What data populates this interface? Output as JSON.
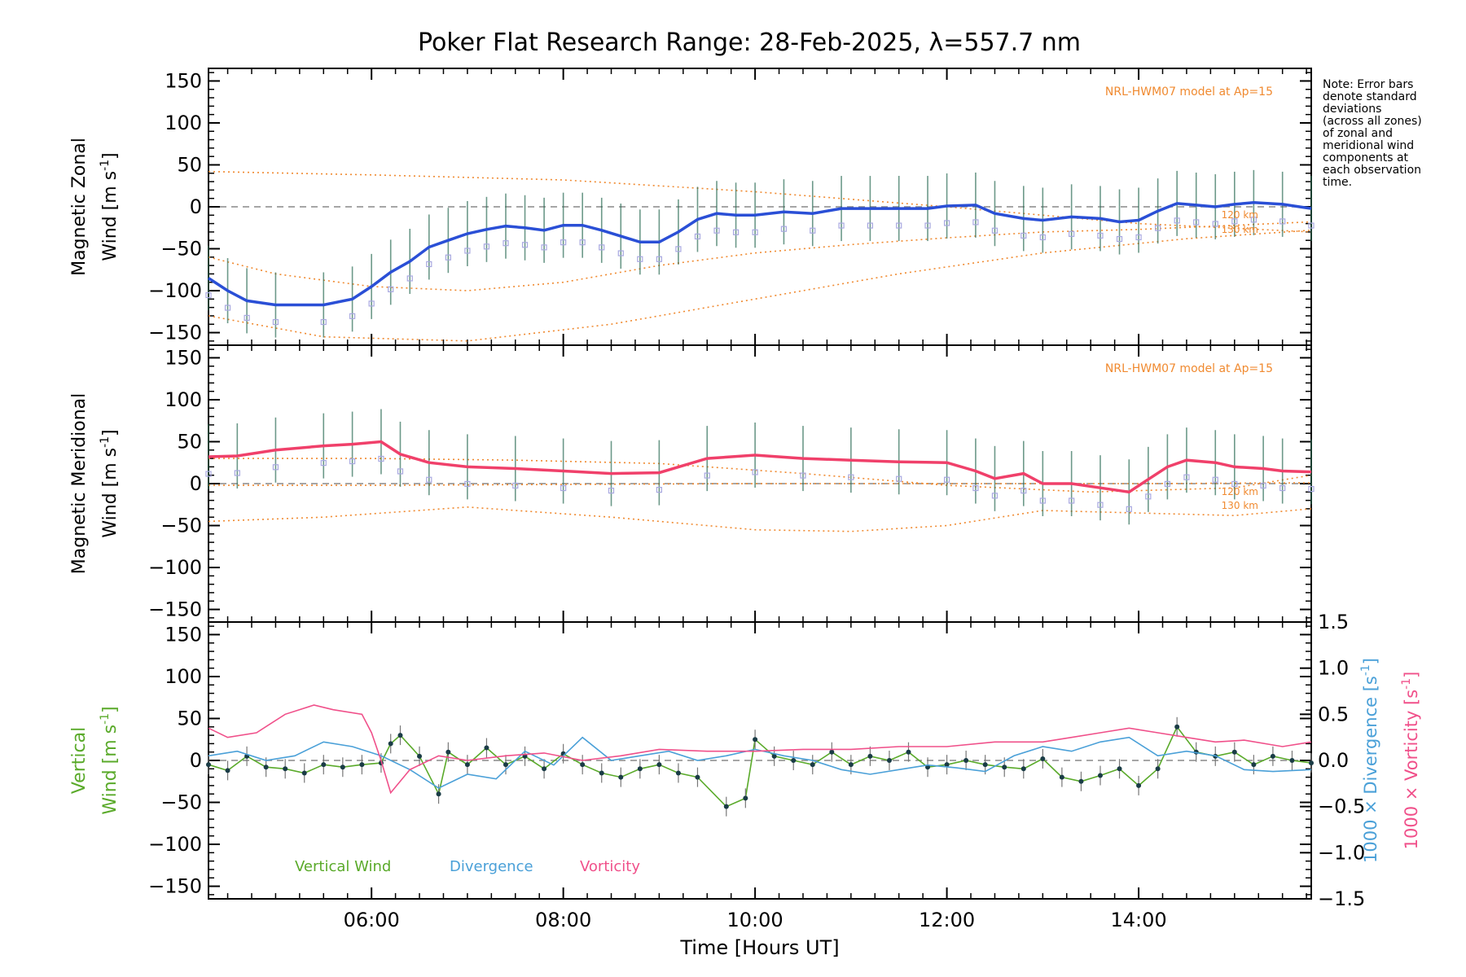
{
  "chart_data": [
    {
      "type": "line",
      "panel": "zonal",
      "title": "Poker Flat Research Range: 28-Feb-2025, λ=557.7 nm",
      "ylabel_line1": "Magnetic Zonal",
      "ylabel_line2": "Wind [m s",
      "ylabel_sup": "-1",
      "ylabel_close": "]",
      "model_label": "NRL-HWM07 model at Ap=15",
      "model_alt_labels": [
        "120 km",
        "130 km"
      ],
      "note": [
        "Note: Error bars",
        "denote standard",
        "deviations",
        "(across all zones)",
        "of zonal and",
        "meridional wind",
        "components at",
        "each observation",
        "time."
      ],
      "xlim": [
        4.3,
        15.8
      ],
      "ylim": [
        -165,
        165
      ],
      "yticks": [
        "150",
        "100",
        "50",
        "0",
        "−50",
        "−100",
        "−150"
      ],
      "series": [
        {
          "color": "#2a4fd6",
          "x": [
            4.3,
            4.5,
            4.7,
            5.0,
            5.5,
            5.8,
            6.0,
            6.2,
            6.4,
            6.6,
            6.8,
            7.0,
            7.2,
            7.4,
            7.6,
            7.8,
            8.0,
            8.2,
            8.4,
            8.6,
            8.8,
            9.0,
            9.2,
            9.4,
            9.6,
            9.8,
            10.0,
            10.3,
            10.6,
            10.9,
            11.2,
            11.5,
            11.8,
            12.0,
            12.3,
            12.5,
            12.8,
            13.0,
            13.3,
            13.6,
            13.8,
            14.0,
            14.2,
            14.4,
            14.6,
            14.8,
            15.0,
            15.2,
            15.5,
            15.8
          ],
          "y": [
            -85,
            -100,
            -112,
            -117,
            -117,
            -110,
            -95,
            -78,
            -65,
            -48,
            -40,
            -32,
            -27,
            -23,
            -25,
            -28,
            -22,
            -22,
            -28,
            -35,
            -42,
            -42,
            -30,
            -15,
            -8,
            -10,
            -10,
            -6,
            -8,
            -2,
            -2,
            -2,
            -2,
            1,
            2,
            -8,
            -14,
            -16,
            -12,
            -14,
            -18,
            -16,
            -5,
            4,
            2,
            0,
            3,
            5,
            3,
            -2
          ]
        }
      ],
      "model_curves": [
        {
          "color": "#f08a30",
          "x": [
            4.3,
            6.0,
            8.0,
            10.0,
            12.0,
            14.0,
            15.8
          ],
          "y": [
            42,
            38,
            32,
            18,
            0,
            -20,
            -30
          ]
        },
        {
          "color": "#f08a30",
          "x": [
            4.3,
            5.0,
            6.0,
            7.0,
            8.0,
            9.0,
            10.0,
            11.0,
            12.0,
            13.0,
            14.0,
            15.0,
            15.8
          ],
          "y": [
            -60,
            -80,
            -95,
            -100,
            -90,
            -70,
            -55,
            -45,
            -37,
            -30,
            -27,
            -22,
            -18
          ]
        },
        {
          "color": "#f08a30",
          "x": [
            4.3,
            5.5,
            7.0,
            8.5,
            10.0,
            11.5,
            13.0,
            14.5,
            15.8
          ],
          "y": [
            -130,
            -155,
            -160,
            -140,
            -110,
            -80,
            -55,
            -38,
            -28
          ]
        }
      ]
    },
    {
      "type": "line",
      "panel": "meridional",
      "ylabel_line1": "Magnetic Meridional",
      "ylabel_line2": "Wind [m s",
      "ylabel_sup": "-1",
      "ylabel_close": "]",
      "model_label": "NRL-HWM07 model at Ap=15",
      "model_alt_labels": [
        "120 km",
        "130 km"
      ],
      "xlim": [
        4.3,
        15.8
      ],
      "ylim": [
        -165,
        165
      ],
      "yticks": [
        "150",
        "100",
        "50",
        "0",
        "−50",
        "−100",
        "−150"
      ],
      "series": [
        {
          "color": "#f0406a",
          "x": [
            4.3,
            4.6,
            5.0,
            5.5,
            5.8,
            6.1,
            6.3,
            6.6,
            7.0,
            7.5,
            8.0,
            8.5,
            9.0,
            9.5,
            10.0,
            10.5,
            11.0,
            11.5,
            12.0,
            12.3,
            12.5,
            12.8,
            13.0,
            13.3,
            13.6,
            13.9,
            14.1,
            14.3,
            14.5,
            14.8,
            15.0,
            15.3,
            15.5,
            15.8
          ],
          "y": [
            32,
            33,
            40,
            45,
            47,
            50,
            35,
            25,
            20,
            18,
            15,
            12,
            13,
            30,
            34,
            30,
            28,
            26,
            25,
            15,
            6,
            12,
            0,
            0,
            -5,
            -10,
            5,
            20,
            28,
            25,
            20,
            18,
            15,
            14
          ]
        }
      ],
      "model_curves": [
        {
          "color": "#f08a30",
          "x": [
            4.3,
            6.0,
            7.5,
            9.0,
            10.5,
            12.0,
            13.5,
            15.0,
            15.8
          ],
          "y": [
            30,
            30,
            28,
            24,
            12,
            -2,
            -10,
            -5,
            10
          ]
        },
        {
          "color": "#f08a30",
          "x": [
            4.3,
            6.0,
            8.0,
            10.0,
            12.0,
            14.0,
            15.8
          ],
          "y": [
            -2,
            -2,
            -1,
            0,
            0,
            0,
            1
          ]
        },
        {
          "color": "#f08a30",
          "x": [
            4.3,
            5.5,
            7.0,
            8.5,
            10.0,
            11.0,
            12.0,
            13.0,
            14.0,
            15.0,
            15.8
          ],
          "y": [
            -45,
            -40,
            -28,
            -40,
            -55,
            -57,
            -50,
            -32,
            -35,
            -38,
            -30
          ]
        }
      ]
    },
    {
      "type": "line",
      "panel": "vertical",
      "ylabel_line1": "Vertical",
      "ylabel_line2": "Wind [m s",
      "ylabel_sup": "-1",
      "ylabel_close": "]",
      "y2label_div": "1000 × Divergence [s",
      "y2label_vor": "1000 × Vorticity [s",
      "y2label_sup": "-1",
      "y2label_close": "]",
      "xlabel": "Time [Hours UT]",
      "xticks": [
        "06:00",
        "08:00",
        "10:00",
        "12:00",
        "14:00"
      ],
      "xtick_values": [
        6,
        8,
        10,
        12,
        14
      ],
      "xlim": [
        4.3,
        15.8
      ],
      "ylim": [
        -165,
        165
      ],
      "y2lim": [
        -1.5,
        1.5
      ],
      "yticks": [
        "150",
        "100",
        "50",
        "0",
        "−50",
        "−100",
        "−150"
      ],
      "y2ticks": [
        "1.5",
        "1.0",
        "0.5",
        "0.0",
        "−0.5",
        "−1.0",
        "−1.5"
      ],
      "legend": [
        {
          "label": "Vertical Wind",
          "color": "#5aaa2a"
        },
        {
          "label": "Divergence",
          "color": "#4aa0d8"
        },
        {
          "label": "Vorticity",
          "color": "#f0508a"
        }
      ],
      "series": [
        {
          "name": "Vertical Wind",
          "color": "#5aaa2a",
          "x": [
            4.3,
            4.5,
            4.7,
            4.9,
            5.1,
            5.3,
            5.5,
            5.7,
            5.9,
            6.1,
            6.2,
            6.3,
            6.5,
            6.7,
            6.8,
            7.0,
            7.2,
            7.4,
            7.6,
            7.8,
            8.0,
            8.2,
            8.4,
            8.6,
            8.8,
            9.0,
            9.2,
            9.4,
            9.7,
            9.9,
            10.0,
            10.2,
            10.4,
            10.6,
            10.8,
            11.0,
            11.2,
            11.4,
            11.6,
            11.8,
            12.0,
            12.2,
            12.4,
            12.6,
            12.8,
            13.0,
            13.2,
            13.4,
            13.6,
            13.8,
            14.0,
            14.2,
            14.4,
            14.6,
            14.8,
            15.0,
            15.2,
            15.4,
            15.6,
            15.8
          ],
          "y": [
            -5,
            -12,
            5,
            -8,
            -10,
            -15,
            -5,
            -8,
            -5,
            -3,
            20,
            30,
            5,
            -40,
            10,
            -5,
            15,
            -5,
            5,
            -10,
            8,
            -5,
            -15,
            -20,
            -10,
            -5,
            -15,
            -20,
            -55,
            -45,
            25,
            5,
            0,
            -5,
            10,
            -5,
            5,
            0,
            10,
            -8,
            -5,
            0,
            -5,
            -8,
            -10,
            2,
            -20,
            -25,
            -18,
            -10,
            -30,
            -10,
            40,
            10,
            5,
            10,
            -5,
            5,
            0,
            -3
          ]
        },
        {
          "name": "Divergence",
          "axis": "y2",
          "color": "#4aa0d8",
          "x": [
            4.3,
            4.6,
            4.9,
            5.2,
            5.5,
            5.8,
            6.1,
            6.4,
            6.7,
            7.0,
            7.3,
            7.6,
            7.9,
            8.2,
            8.5,
            8.8,
            9.1,
            9.4,
            9.7,
            10.0,
            10.3,
            10.6,
            10.9,
            11.2,
            11.5,
            11.8,
            12.1,
            12.4,
            12.7,
            13.0,
            13.3,
            13.6,
            13.9,
            14.2,
            14.5,
            14.8,
            15.1,
            15.4,
            15.8
          ],
          "y": [
            0.05,
            0.1,
            0.0,
            0.05,
            0.2,
            0.15,
            0.05,
            -0.1,
            -0.3,
            -0.15,
            -0.2,
            0.1,
            -0.05,
            0.25,
            0.0,
            0.05,
            0.1,
            0.0,
            0.05,
            0.12,
            0.05,
            0.0,
            -0.1,
            -0.15,
            -0.1,
            -0.05,
            -0.08,
            -0.12,
            0.05,
            0.15,
            0.1,
            0.2,
            0.25,
            0.05,
            0.1,
            0.05,
            -0.1,
            -0.12,
            -0.1
          ]
        },
        {
          "name": "Vorticity",
          "axis": "y2",
          "color": "#f0508a",
          "x": [
            4.3,
            4.5,
            4.8,
            5.1,
            5.4,
            5.6,
            5.9,
            6.0,
            6.1,
            6.2,
            6.4,
            6.7,
            7.0,
            7.4,
            7.8,
            8.2,
            8.6,
            9.0,
            9.5,
            10.0,
            10.5,
            11.0,
            11.5,
            12.0,
            12.5,
            13.0,
            13.3,
            13.6,
            13.9,
            14.2,
            14.5,
            14.8,
            15.1,
            15.5,
            15.8
          ],
          "y": [
            0.35,
            0.25,
            0.3,
            0.5,
            0.6,
            0.55,
            0.5,
            0.3,
            0.0,
            -0.35,
            -0.1,
            0.05,
            0.0,
            0.05,
            0.08,
            0.0,
            0.05,
            0.12,
            0.1,
            0.1,
            0.12,
            0.12,
            0.15,
            0.15,
            0.2,
            0.2,
            0.25,
            0.3,
            0.35,
            0.3,
            0.25,
            0.2,
            0.22,
            0.15,
            0.2
          ]
        }
      ]
    }
  ]
}
